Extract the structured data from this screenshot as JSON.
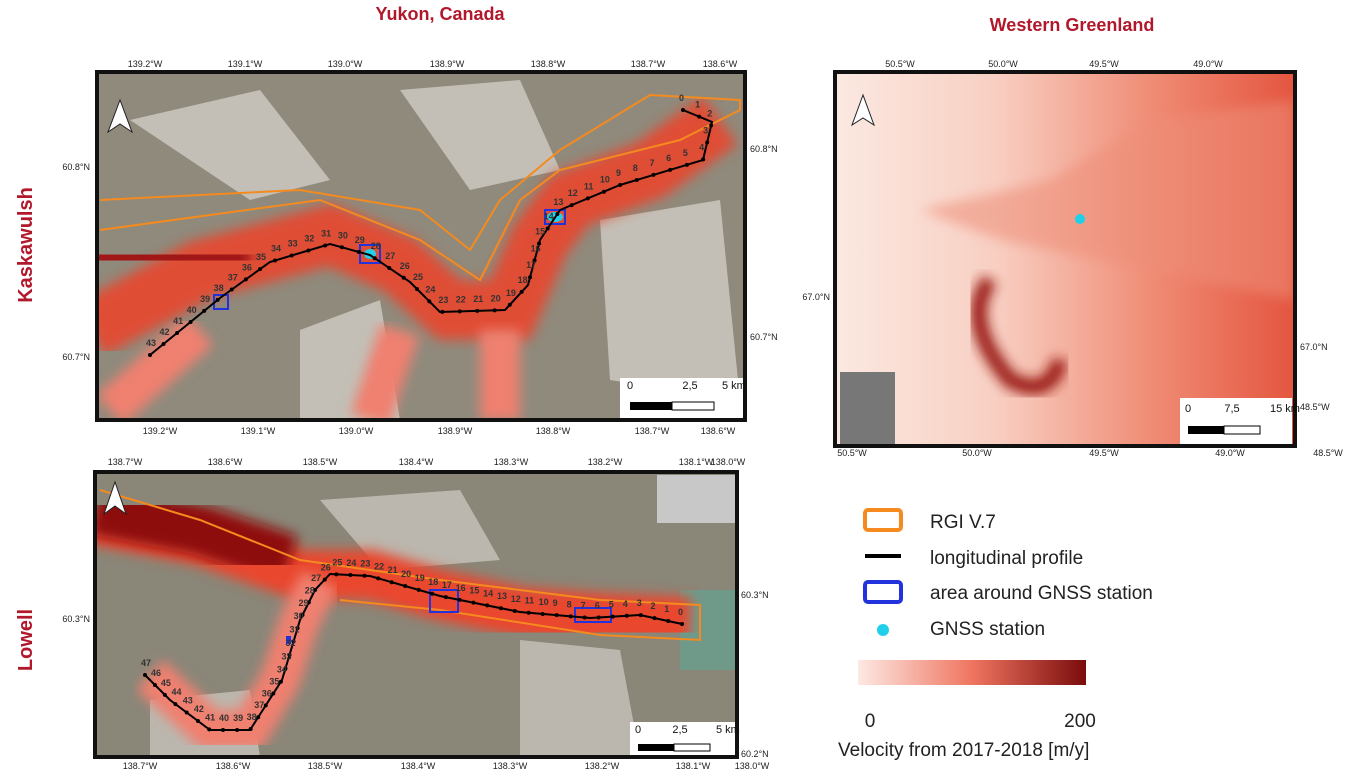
{
  "titles": {
    "left": "Yukon, Canada",
    "right": "Western Greenland"
  },
  "maps": [
    {
      "name": "Kaskawulsh",
      "top_ticks": [
        "139.2°W",
        "139.1°W",
        "139.0°W",
        "138.9°W",
        "138.8°W",
        "138.7°W",
        "138.6°W"
      ],
      "bottom_ticks": [
        "139.2°W",
        "139.1°W",
        "139.0°W",
        "138.9°W",
        "138.8°W",
        "138.7°W",
        "138.6°W"
      ],
      "left_ticks": [
        "60.8°N",
        "60.7°N"
      ],
      "right_ticks": [
        "60.8°N",
        "60.7°N"
      ],
      "scale_labels": [
        "0",
        "2,5",
        "5 km"
      ],
      "profile_labels": [
        0,
        1,
        2,
        3,
        4,
        5,
        6,
        7,
        8,
        9,
        10,
        11,
        12,
        13,
        14,
        15,
        16,
        17,
        18,
        19,
        20,
        21,
        22,
        23,
        24,
        25,
        26,
        27,
        28,
        29,
        30,
        31,
        32,
        33,
        34,
        35,
        36,
        37,
        38,
        39,
        40,
        41,
        42,
        43
      ]
    },
    {
      "name": "Lowell",
      "top_ticks": [
        "138.7°W",
        "138.6°W",
        "138.5°W",
        "138.4°W",
        "138.3°W",
        "138.2°W",
        "138.1°W",
        "138.0°W"
      ],
      "bottom_ticks": [
        "138.7°W",
        "138.6°W",
        "138.5°W",
        "138.4°W",
        "138.3°W",
        "138.2°W",
        "138.1°W",
        "138.0°W"
      ],
      "left_ticks": [
        "60.3°N"
      ],
      "right_ticks": [
        "60.3°N",
        "60.2°N"
      ],
      "scale_labels": [
        "0",
        "2,5",
        "5 km"
      ],
      "profile_labels": [
        0,
        1,
        2,
        3,
        4,
        5,
        6,
        7,
        8,
        9,
        10,
        11,
        12,
        13,
        14,
        15,
        16,
        17,
        18,
        19,
        20,
        21,
        22,
        23,
        24,
        25,
        26,
        27,
        28,
        29,
        30,
        31,
        32,
        33,
        34,
        35,
        36,
        37,
        38,
        39,
        40,
        41,
        42,
        43,
        44,
        45,
        46,
        47
      ]
    },
    {
      "top_ticks": [
        "50.5°W",
        "50.0°W",
        "49.5°W",
        "49.0°W"
      ],
      "bottom_ticks": [
        "50.5°W",
        "50.0°W",
        "49.5°W",
        "49.0°W",
        "48.5°W"
      ],
      "left_ticks": [
        "67.0°N"
      ],
      "right_ticks": [
        "67.0°N",
        "48.5°W"
      ],
      "scale_labels": [
        "0",
        "7,5",
        "15 km"
      ]
    }
  ],
  "legend": [
    "RGI V.7",
    "longitudinal profile",
    "area around GNSS station",
    "GNSS station"
  ],
  "colorbar": {
    "ticks": [
      0,
      200
    ],
    "label": "Velocity from 2017-2018 [m/y]"
  }
}
